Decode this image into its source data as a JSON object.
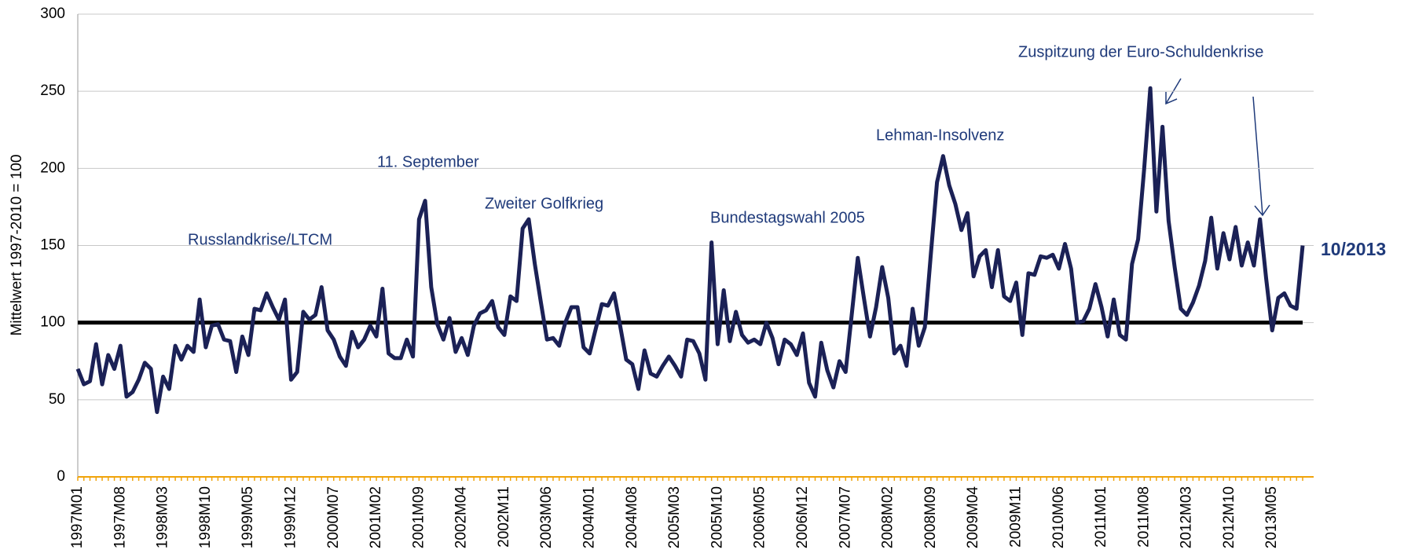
{
  "chart_data": {
    "type": "line",
    "y_label": "Mittelwert 1997-2010 = 100",
    "categories": [
      "1997M01",
      null,
      null,
      null,
      null,
      null,
      null,
      "1997M08",
      null,
      null,
      null,
      null,
      null,
      null,
      "1998M03",
      null,
      null,
      null,
      null,
      null,
      null,
      "1998M10",
      null,
      null,
      null,
      null,
      null,
      null,
      "1999M05",
      null,
      null,
      null,
      null,
      null,
      null,
      "1999M12",
      null,
      null,
      null,
      null,
      null,
      null,
      "2000M07",
      null,
      null,
      null,
      null,
      null,
      null,
      "2001M02",
      null,
      null,
      null,
      null,
      null,
      null,
      "2001M09",
      null,
      null,
      null,
      null,
      null,
      null,
      "2002M04",
      null,
      null,
      null,
      null,
      null,
      null,
      "2002M11",
      null,
      null,
      null,
      null,
      null,
      null,
      "2003M06",
      null,
      null,
      null,
      null,
      null,
      null,
      "2004M01",
      null,
      null,
      null,
      null,
      null,
      null,
      "2004M08",
      null,
      null,
      null,
      null,
      null,
      null,
      "2005M03",
      null,
      null,
      null,
      null,
      null,
      null,
      "2005M10",
      null,
      null,
      null,
      null,
      null,
      null,
      "2006M05",
      null,
      null,
      null,
      null,
      null,
      null,
      "2006M12",
      null,
      null,
      null,
      null,
      null,
      null,
      "2007M07",
      null,
      null,
      null,
      null,
      null,
      null,
      "2008M02",
      null,
      null,
      null,
      null,
      null,
      null,
      "2008M09",
      null,
      null,
      null,
      null,
      null,
      null,
      "2009M04",
      null,
      null,
      null,
      null,
      null,
      null,
      "2009M11",
      null,
      null,
      null,
      null,
      null,
      null,
      "2010M06",
      null,
      null,
      null,
      null,
      null,
      null,
      "2011M01",
      null,
      null,
      null,
      null,
      null,
      null,
      "2011M08",
      null,
      null,
      null,
      null,
      null,
      null,
      "2012M03",
      null,
      null,
      null,
      null,
      null,
      null,
      "2012M10",
      null,
      null,
      null,
      null,
      null,
      null,
      "2013M05",
      null,
      null,
      null,
      null,
      null
    ],
    "values": [
      70,
      60,
      62,
      86,
      60,
      79,
      70,
      85,
      52,
      55,
      63,
      74,
      70,
      42,
      65,
      57,
      85,
      76,
      85,
      81,
      115,
      84,
      98,
      99,
      89,
      88,
      68,
      91,
      79,
      109,
      108,
      119,
      110,
      102,
      115,
      63,
      68,
      107,
      102,
      105,
      123,
      95,
      89,
      78,
      72,
      94,
      84,
      89,
      98,
      91,
      122,
      80,
      77,
      77,
      89,
      78,
      167,
      179,
      123,
      99,
      89,
      103,
      81,
      90,
      79,
      98,
      106,
      108,
      114,
      97,
      92,
      117,
      114,
      161,
      167,
      138,
      113,
      89,
      90,
      85,
      100,
      110,
      110,
      84,
      80,
      96,
      112,
      111,
      119,
      98,
      76,
      73,
      57,
      82,
      67,
      65,
      72,
      78,
      72,
      65,
      89,
      88,
      80,
      63,
      152,
      86,
      121,
      88,
      107,
      92,
      87,
      89,
      86,
      100,
      90,
      73,
      89,
      86,
      79,
      93,
      61,
      52,
      87,
      69,
      58,
      75,
      68,
      105,
      142,
      116,
      91,
      110,
      136,
      116,
      80,
      85,
      72,
      109,
      85,
      97,
      145,
      191,
      208,
      189,
      177,
      160,
      171,
      130,
      143,
      147,
      123,
      147,
      117,
      114,
      126,
      92,
      132,
      131,
      143,
      142,
      144,
      135,
      151,
      135,
      100,
      101,
      109,
      125,
      110,
      91,
      115,
      92,
      89,
      138,
      154,
      200,
      252,
      172,
      227,
      166,
      136,
      109,
      105,
      113,
      124,
      140,
      168,
      135,
      158,
      141,
      162,
      137,
      152,
      137,
      167,
      129,
      95,
      116,
      119,
      111,
      109,
      150
    ],
    "color": "#1b2156",
    "reference_line": 100,
    "reference_color": "#000000",
    "axis_color": "#f0a30a",
    "ylim": [
      0,
      300
    ],
    "yticks": [
      0,
      50,
      100,
      150,
      200,
      250,
      300
    ],
    "grid": true,
    "annotations": [
      "Russlandkrise/LTCM",
      "11. September",
      "Zweiter Golfkrieg",
      "Bundestagswahl 2005",
      "Lehman-Insolvenz",
      "Zuspitzung der Euro-Schuldenkrise",
      "10/2013"
    ]
  }
}
